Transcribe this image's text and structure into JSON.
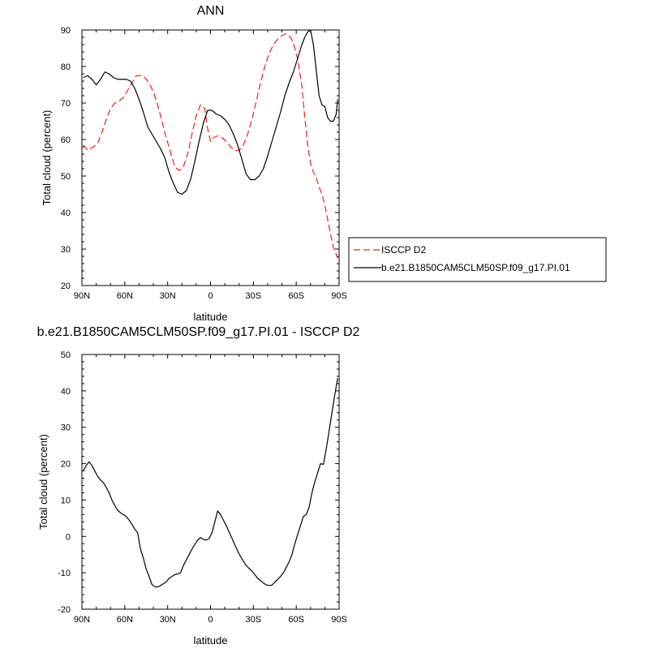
{
  "chart_data": [
    {
      "type": "line",
      "title": "ANN",
      "xlabel": "latitude",
      "ylabel": "Total cloud (percent)",
      "xlim": [
        -90,
        90
      ],
      "ylim": [
        20,
        90
      ],
      "xticks": [
        -90,
        -60,
        -30,
        0,
        30,
        60,
        90
      ],
      "xtick_labels": [
        "90N",
        "60N",
        "30N",
        "0",
        "30S",
        "60S",
        "90S"
      ],
      "yticks": [
        20,
        30,
        40,
        50,
        60,
        70,
        80,
        90
      ],
      "grid": false,
      "legend_position": "right",
      "series": [
        {
          "name": "ISCCP D2",
          "color": "#e8231e",
          "dash": "dashed",
          "x": [
            -89,
            -86,
            -82,
            -79,
            -76,
            -73,
            -70,
            -67,
            -64,
            -61,
            -58,
            -55,
            -52,
            -49,
            -46,
            -43,
            -40,
            -37,
            -34,
            -31,
            -28,
            -25,
            -22,
            -19,
            -16,
            -13,
            -10,
            -7,
            -4,
            -2,
            0,
            2,
            5,
            8,
            11,
            14,
            17,
            20,
            23,
            26,
            29,
            32,
            35,
            38,
            41,
            44,
            47,
            50,
            53,
            56,
            58,
            61,
            64,
            66,
            68,
            70,
            72,
            74,
            76,
            78,
            80,
            82,
            84,
            86,
            88,
            89
          ],
          "values": [
            58.5,
            57,
            58,
            59,
            62,
            65.5,
            68.5,
            70,
            70.5,
            71.5,
            73.5,
            75.5,
            77.5,
            77.5,
            77,
            75.5,
            73,
            69.5,
            65,
            60.5,
            56.5,
            52.5,
            51.5,
            52.5,
            56,
            61.5,
            66.5,
            69.5,
            68.5,
            63,
            59.5,
            60.5,
            61,
            60.5,
            59.5,
            58,
            57,
            57,
            58.5,
            61.5,
            65.5,
            70.5,
            75.5,
            80,
            83.5,
            86,
            87.5,
            88.5,
            89,
            88,
            86.5,
            82,
            74.5,
            66,
            58.5,
            53.5,
            51,
            49.5,
            47,
            45,
            42,
            38,
            34,
            30.5,
            28.5,
            27.5
          ]
        },
        {
          "name": "b.e21.B1850CAM5CLM50SP.f09_g17.PI.01",
          "color": "#000000",
          "dash": "solid",
          "x": [
            -89,
            -86,
            -83,
            -80,
            -77,
            -74,
            -71,
            -68,
            -65,
            -62,
            -59,
            -56,
            -53,
            -50,
            -47,
            -44,
            -41,
            -38,
            -35,
            -32,
            -29,
            -26,
            -23,
            -20,
            -17,
            -14,
            -11,
            -8,
            -5,
            -2,
            1,
            4,
            7,
            10,
            13,
            16,
            19,
            22,
            25,
            28,
            31,
            34,
            37,
            40,
            43,
            46,
            49,
            52,
            55,
            58,
            60,
            62,
            64,
            66,
            68,
            70,
            72,
            74,
            76,
            78,
            80,
            82,
            84,
            86,
            88,
            89
          ],
          "values": [
            77,
            77.5,
            76.5,
            75,
            76.5,
            78.5,
            78,
            77,
            76.5,
            76.5,
            76.5,
            76,
            74,
            71,
            67.5,
            63.5,
            61.5,
            59.5,
            57.5,
            55,
            51,
            48,
            45.5,
            45,
            46,
            49,
            54,
            59.5,
            64.5,
            68,
            68,
            67,
            66.5,
            65.5,
            64,
            61.5,
            58.5,
            54.5,
            50.5,
            49,
            49,
            50,
            52,
            55.5,
            59.5,
            63.5,
            67.5,
            72,
            75.5,
            78.5,
            81,
            83.5,
            86,
            88,
            89.5,
            90,
            86,
            79,
            72,
            69.5,
            69,
            66,
            65,
            65,
            67,
            71
          ]
        }
      ]
    },
    {
      "type": "line",
      "title": "b.e21.B1850CAM5CLM50SP.f09_g17.PI.01 - ISCCP D2",
      "xlabel": "latitude",
      "ylabel": "Total cloud (percent)",
      "xlim": [
        -90,
        90
      ],
      "ylim": [
        -20,
        50
      ],
      "xticks": [
        -90,
        -60,
        -30,
        0,
        30,
        60,
        90
      ],
      "xtick_labels": [
        "90N",
        "60N",
        "30N",
        "0",
        "30S",
        "60S",
        "90S"
      ],
      "yticks": [
        -20,
        -10,
        0,
        10,
        20,
        30,
        40,
        50
      ],
      "grid": false,
      "series": [
        {
          "color": "#000000",
          "dash": "solid",
          "x": [
            -89,
            -87,
            -85,
            -83,
            -81,
            -79,
            -77,
            -75,
            -73,
            -71,
            -69,
            -67,
            -65,
            -63,
            -61,
            -59,
            -57,
            -55,
            -53,
            -51,
            -49,
            -47,
            -45,
            -43,
            -41,
            -39,
            -37,
            -35,
            -33,
            -31,
            -29,
            -27,
            -25,
            -23,
            -21,
            -19,
            -17,
            -15,
            -13,
            -11,
            -9,
            -7,
            -5,
            -3,
            -1,
            1,
            3,
            5,
            7,
            9,
            11,
            13,
            15,
            17,
            19,
            21,
            23,
            25,
            27,
            29,
            31,
            33,
            35,
            37,
            39,
            41,
            43,
            45,
            47,
            49,
            51,
            53,
            55,
            57,
            59,
            61,
            63,
            65,
            67,
            69,
            71,
            73,
            75,
            77,
            79,
            81,
            83,
            85,
            87,
            89
          ],
          "values": [
            18,
            19.5,
            20.5,
            19.5,
            18,
            16.5,
            15.5,
            14.8,
            13.5,
            12,
            10,
            8.5,
            7.2,
            6.5,
            6,
            5.5,
            4.5,
            3.3,
            2,
            1,
            -3.5,
            -6,
            -9,
            -11,
            -13.2,
            -13.8,
            -13.9,
            -13.5,
            -13,
            -12.5,
            -11.5,
            -11,
            -10.5,
            -10.3,
            -10,
            -8,
            -6.5,
            -5,
            -3.5,
            -2.2,
            -1,
            -0.3,
            -0.8,
            -1,
            -0.6,
            1,
            4,
            7,
            6,
            4.5,
            3,
            1.2,
            -0.5,
            -2.3,
            -4,
            -5.5,
            -6.8,
            -8,
            -8.8,
            -9.5,
            -10.5,
            -11.5,
            -12.2,
            -12.8,
            -13.3,
            -13.5,
            -13.4,
            -12.6,
            -11.8,
            -11,
            -10,
            -8.5,
            -7,
            -5,
            -2,
            0.5,
            3,
            5.5,
            6,
            8,
            12,
            15,
            17.5,
            20,
            19.8,
            24,
            29,
            34,
            39,
            43.5
          ]
        }
      ]
    }
  ]
}
